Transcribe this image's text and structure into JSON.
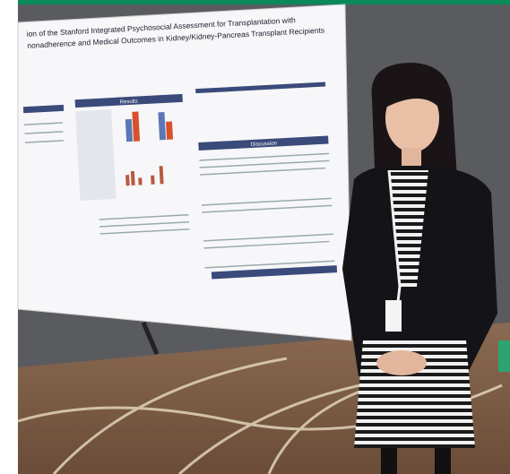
{
  "poster": {
    "title_lines": [
      "ion of the Stanford Integrated Psychosocial Assessment for Transplantation with",
      "nonadherence and Medical Outcomes in Kidney/Kidney-Pancreas Transplant Recipients"
    ],
    "sections": [
      "Results",
      "Discussion"
    ]
  }
}
